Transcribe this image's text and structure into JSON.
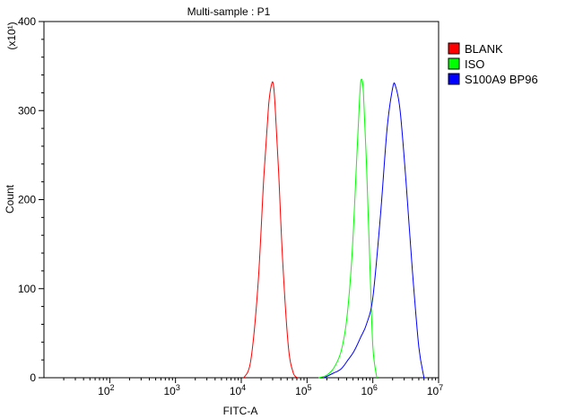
{
  "chart_data": {
    "type": "line",
    "title": "Multi-sample : P1",
    "xlabel": "FITC-A",
    "ylabel": "Count",
    "y_multiplier_label": "(x10¹)",
    "x_scale": "log",
    "xlim": [
      10,
      10000000
    ],
    "ylim": [
      0,
      400
    ],
    "x_ticks": [
      {
        "value": 100,
        "base": "10",
        "exp": "2"
      },
      {
        "value": 1000,
        "base": "10",
        "exp": "3"
      },
      {
        "value": 10000,
        "base": "10",
        "exp": "4"
      },
      {
        "value": 100000,
        "base": "10",
        "exp": "5"
      },
      {
        "value": 1000000,
        "base": "10",
        "exp": "6"
      },
      {
        "value": 10000000,
        "base": "10",
        "exp": "7"
      }
    ],
    "y_ticks": [
      0,
      100,
      200,
      300,
      400
    ],
    "grid": false,
    "legend_position": "top-right",
    "series": [
      {
        "name": "BLANK",
        "color": "#ff0000",
        "x": [
          11000,
          14000,
          18000,
          22000,
          26000,
          29000,
          31000,
          33000,
          37000,
          43000,
          52000,
          62000,
          72000
        ],
        "y": [
          0,
          20,
          105,
          225,
          305,
          330,
          328,
          300,
          230,
          125,
          35,
          5,
          0
        ]
      },
      {
        "name": "ISO",
        "color": "#00ff00",
        "x": [
          150000,
          200000,
          260000,
          330000,
          400000,
          480000,
          560000,
          630000,
          670000,
          720000,
          800000,
          900000,
          1000000,
          1150000
        ],
        "y": [
          0,
          3,
          12,
          30,
          65,
          135,
          235,
          315,
          335,
          320,
          240,
          130,
          35,
          0
        ]
      },
      {
        "name": "S100A9 BP96",
        "color": "#0000ff",
        "x": [
          180000,
          250000,
          330000,
          420000,
          520000,
          650000,
          800000,
          1000000,
          1300000,
          1650000,
          2000000,
          2200000,
          2600000,
          3200000,
          4000000,
          5000000,
          6000000
        ],
        "y": [
          0,
          5,
          10,
          20,
          30,
          45,
          60,
          90,
          180,
          280,
          325,
          328,
          300,
          220,
          120,
          35,
          0
        ]
      }
    ]
  }
}
